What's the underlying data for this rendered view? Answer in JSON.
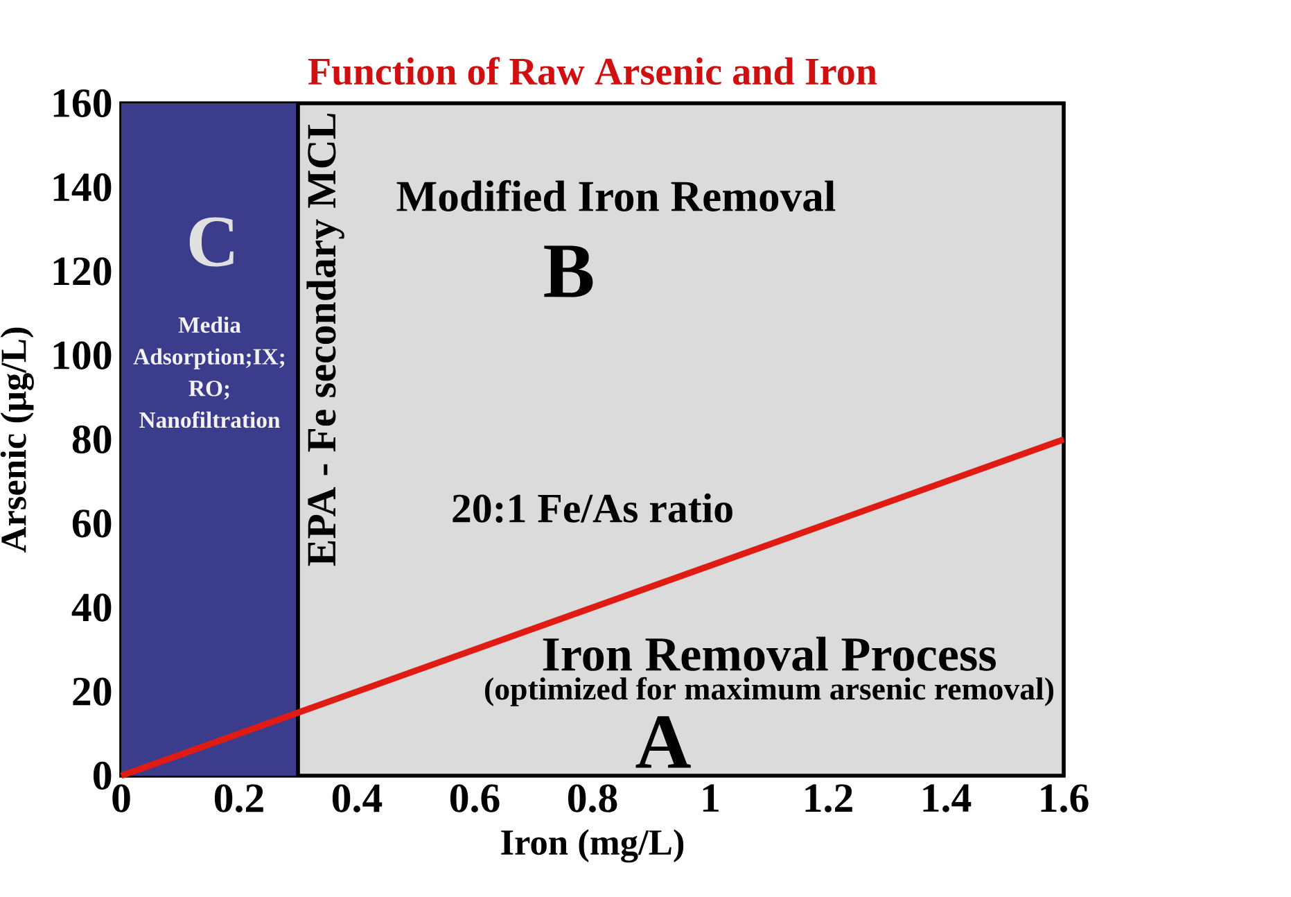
{
  "chart_data": {
    "type": "line",
    "title": "Function of Raw Arsenic and Iron",
    "xlabel": "Iron (mg/L)",
    "ylabel": "Arsenic (μg/L)",
    "series": [
      {
        "color": "#e01b14",
        "x": [
          0,
          1.6
        ],
        "values": [
          0,
          80
        ]
      }
    ],
    "xlim": [
      0,
      1.6
    ],
    "ylim": [
      0,
      160
    ],
    "xticks": [
      0,
      0.2,
      0.4,
      0.6,
      0.8,
      1,
      1.2,
      1.4,
      1.6
    ],
    "yticks": [
      0,
      20,
      40,
      60,
      80,
      100,
      120,
      140,
      160
    ],
    "ref_lines": [
      {
        "axis": "x",
        "value": 0.3,
        "label": "EPA - Fe secondary MCL",
        "color": "#000000"
      }
    ],
    "bands": [
      {
        "axis": "x",
        "from": 0,
        "to": 0.3,
        "label": "Media Adsorption;IX; RO; Nanofiltration",
        "color": "#3c3c8c"
      }
    ],
    "annotations": [
      "C",
      "Modified Iron Removal",
      "B",
      "Iron Removal Process",
      "(optimized for maximum arsenic removal)",
      "A",
      {
        "text": "20:1 Fe/As ratio",
        "x": 0.8,
        "y": 40
      }
    ],
    "grid": false
  }
}
